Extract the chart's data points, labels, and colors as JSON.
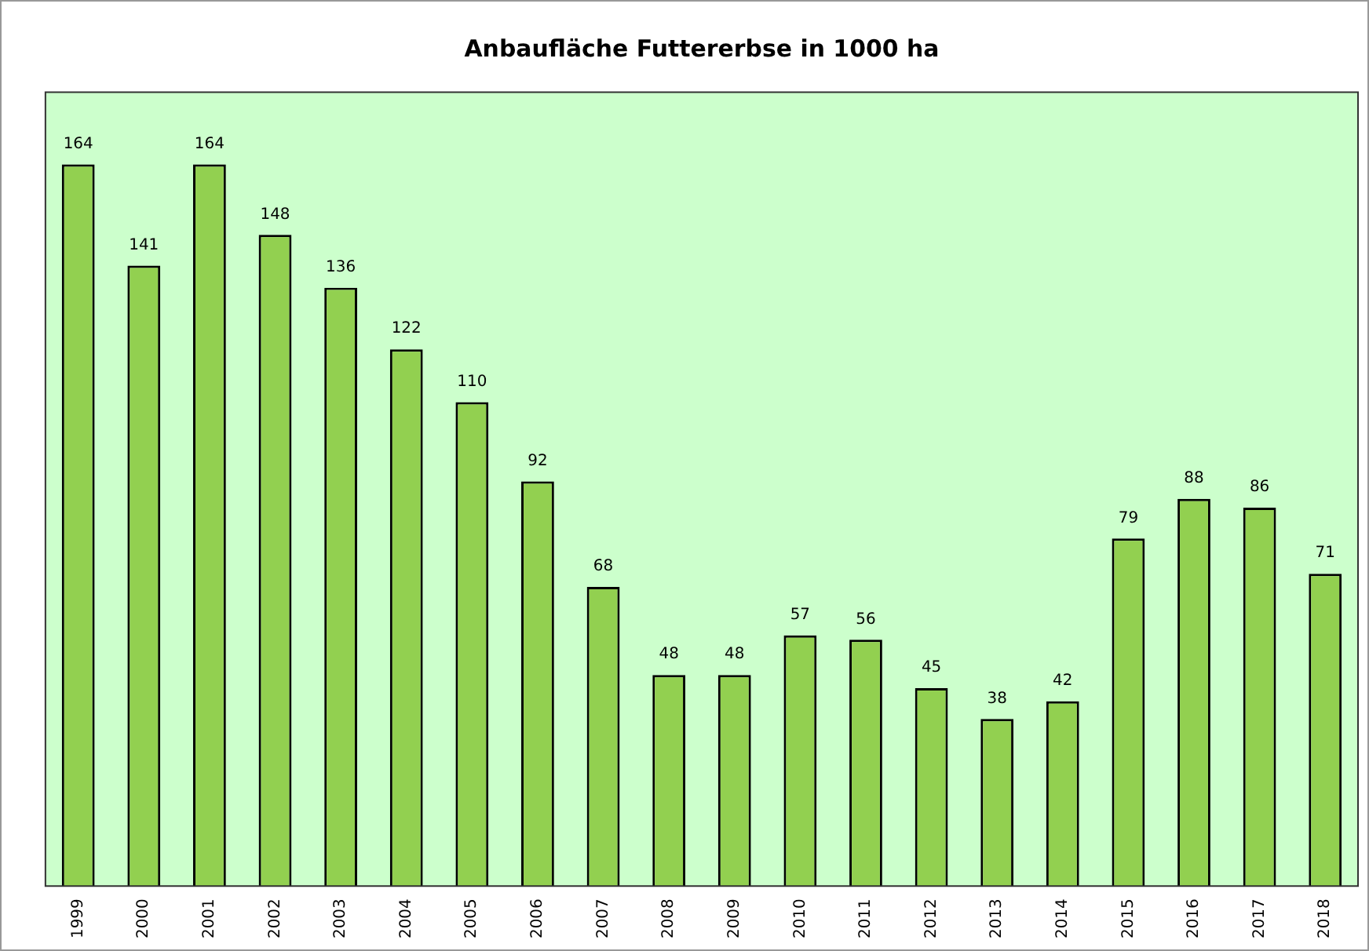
{
  "chart_data": {
    "type": "bar",
    "title": "Anbaufläche Futtererbse in 1000 ha",
    "categories": [
      "1999",
      "2000",
      "2001",
      "2002",
      "2003",
      "2004",
      "2005",
      "2006",
      "2007",
      "2008",
      "2009",
      "2010",
      "2011",
      "2012",
      "2013",
      "2014",
      "2015",
      "2016",
      "2017",
      "2018"
    ],
    "values": [
      164,
      141,
      164,
      148,
      136,
      122,
      110,
      92,
      68,
      48,
      48,
      57,
      56,
      45,
      38,
      42,
      79,
      88,
      86,
      71
    ],
    "color": "#92d050",
    "data_labels": true,
    "grid": false,
    "legend": false,
    "tick_labels": "x"
  }
}
